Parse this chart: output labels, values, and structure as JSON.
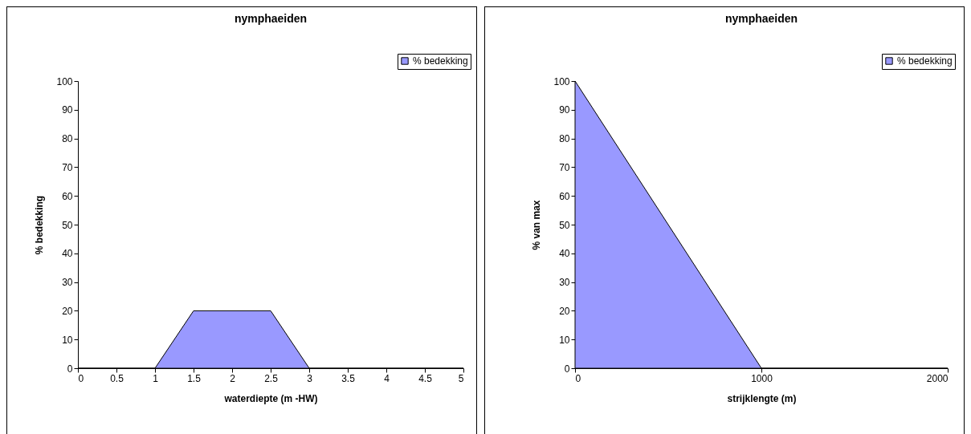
{
  "chart_data": [
    {
      "type": "area",
      "title": "nymphaeiden",
      "xlabel": "waterdiepte (m -HW)",
      "ylabel": "% bedekking",
      "x": [
        0,
        1,
        1.5,
        2.5,
        3,
        5
      ],
      "series": [
        {
          "name": "% bedekking",
          "color": "#9999ff",
          "values": [
            0,
            0,
            20,
            20,
            0,
            0
          ]
        }
      ],
      "xlim": [
        0,
        5
      ],
      "xticks": [
        0,
        0.5,
        1,
        1.5,
        2,
        2.5,
        3,
        3.5,
        4,
        4.5,
        5
      ],
      "ylim": [
        0,
        100
      ],
      "yticks": [
        0,
        10,
        20,
        30,
        40,
        50,
        60,
        70,
        80,
        90,
        100
      ],
      "legend": "top right"
    },
    {
      "type": "area",
      "title": "nymphaeiden",
      "xlabel": "strijklengte (m)",
      "ylabel": "% van max",
      "x": [
        0,
        1000,
        2000
      ],
      "series": [
        {
          "name": "% bedekking",
          "color": "#9999ff",
          "values": [
            100,
            0,
            0
          ]
        }
      ],
      "xlim": [
        0,
        2000
      ],
      "xticks": [
        0,
        1000,
        2000
      ],
      "ylim": [
        0,
        100
      ],
      "yticks": [
        0,
        10,
        20,
        30,
        40,
        50,
        60,
        70,
        80,
        90,
        100
      ],
      "legend": "top right"
    }
  ]
}
